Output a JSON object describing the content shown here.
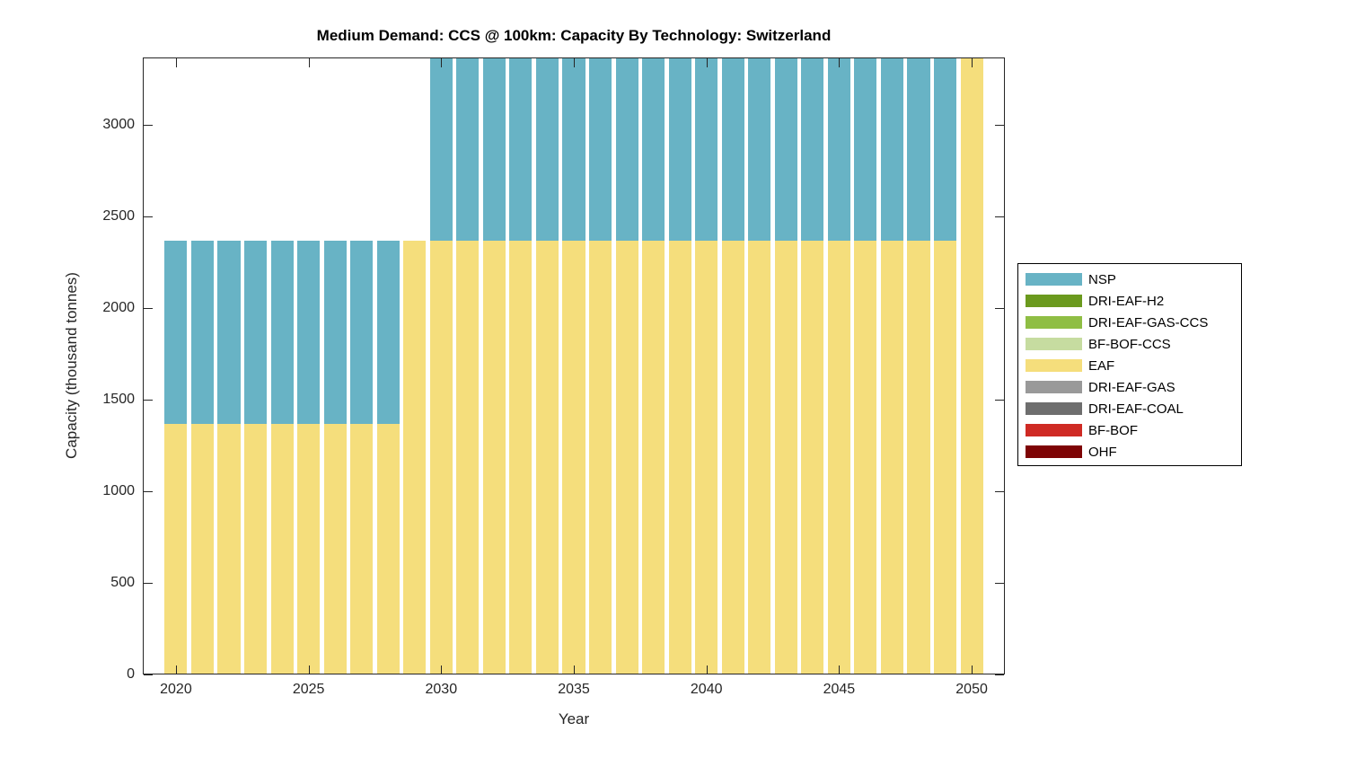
{
  "figure": {
    "background": "#ffffff",
    "axis_color": "#262626",
    "title_color": "#000000"
  },
  "chart_data": {
    "type": "bar",
    "stacked": true,
    "title": "Medium Demand: CCS @ 100km: Capacity By Technology: Switzerland",
    "xlabel": "Year",
    "ylabel": "Capacity (thousand tonnes)",
    "grid": false,
    "legend_position": "right-outside",
    "xlim": [
      2018.75,
      2051.25
    ],
    "ylim": [
      0,
      3370
    ],
    "x_ticks": [
      2020,
      2025,
      2030,
      2035,
      2040,
      2045,
      2050
    ],
    "y_ticks": [
      0,
      500,
      1000,
      1500,
      2000,
      2500,
      3000
    ],
    "bar_width_fraction": 0.85,
    "x": [
      2020,
      2021,
      2022,
      2023,
      2024,
      2025,
      2026,
      2027,
      2028,
      2029,
      2030,
      2031,
      2032,
      2033,
      2034,
      2035,
      2036,
      2037,
      2038,
      2039,
      2040,
      2041,
      2042,
      2043,
      2044,
      2045,
      2046,
      2047,
      2048,
      2049,
      2050
    ],
    "series": [
      {
        "name": "NSP",
        "color": "#68B3C5",
        "values": [
          1000,
          1000,
          1000,
          1000,
          1000,
          1000,
          1000,
          1000,
          1000,
          0,
          1000,
          1000,
          1000,
          1000,
          1000,
          1000,
          1000,
          1000,
          1000,
          1000,
          1000,
          1000,
          1000,
          1000,
          1000,
          1000,
          1000,
          1000,
          1000,
          1000,
          0
        ]
      },
      {
        "name": "DRI-EAF-H2",
        "color": "#6B9A1E",
        "values": 0
      },
      {
        "name": "DRI-EAF-GAS-CCS",
        "color": "#8FBE44",
        "values": 0
      },
      {
        "name": "BF-BOF-CCS",
        "color": "#C6DCA0",
        "values": 0
      },
      {
        "name": "EAF",
        "color": "#F5DE7C",
        "values": [
          1370,
          1370,
          1370,
          1370,
          1370,
          1370,
          1370,
          1370,
          1370,
          2370,
          2370,
          2370,
          2370,
          2370,
          2370,
          2370,
          2370,
          2370,
          2370,
          2370,
          2370,
          2370,
          2370,
          2370,
          2370,
          2370,
          2370,
          2370,
          2370,
          2370,
          3370
        ]
      },
      {
        "name": "DRI-EAF-GAS",
        "color": "#999999",
        "values": 0
      },
      {
        "name": "DRI-EAF-COAL",
        "color": "#6E6E6E",
        "values": 0
      },
      {
        "name": "BF-BOF",
        "color": "#CF2A24",
        "values": 0
      },
      {
        "name": "OHF",
        "color": "#7E0405",
        "values": 0
      }
    ]
  }
}
